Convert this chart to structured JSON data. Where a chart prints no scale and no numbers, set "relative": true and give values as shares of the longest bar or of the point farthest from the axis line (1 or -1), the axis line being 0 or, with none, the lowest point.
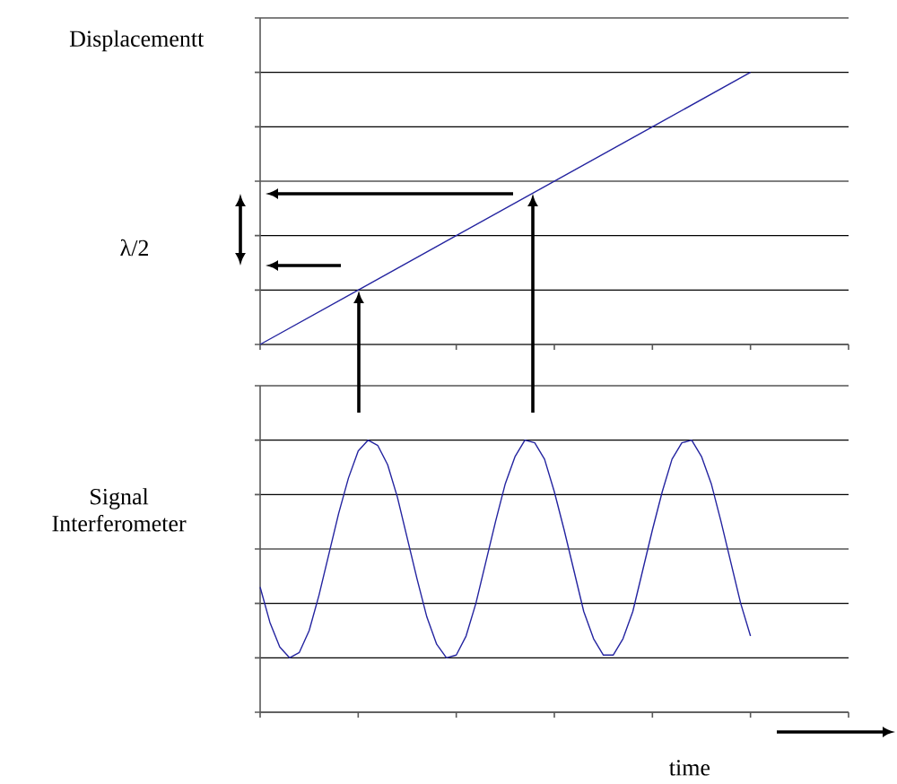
{
  "chart_data": [
    {
      "type": "line",
      "ylabel": "Displacementt",
      "annotations": [
        "λ/2"
      ],
      "relative": true,
      "categories": [
        null,
        null,
        null,
        null,
        null,
        null,
        null
      ],
      "values": [
        0,
        0.2,
        0.4,
        0.6,
        0.8,
        1,
        null
      ],
      "color": "#2424a0",
      "grid": "y",
      "marker": "none",
      "line_style": "solid"
    },
    {
      "type": "line",
      "ylabel": "Signal Interferometer",
      "xlabel": "time",
      "relative": true,
      "categories": [
        null,
        null,
        null,
        null,
        null,
        null,
        null,
        null,
        null,
        null,
        null,
        null,
        null,
        null,
        null,
        null,
        null,
        null,
        null,
        null,
        null,
        null,
        null,
        null,
        null,
        null,
        null,
        null,
        null,
        null,
        null,
        null,
        null,
        null,
        null,
        null,
        null,
        null,
        null,
        null,
        null,
        null,
        null,
        null,
        null,
        null,
        null,
        null,
        null,
        null,
        null,
        null,
        null,
        null,
        null,
        null,
        null,
        null,
        null,
        null,
        null
      ],
      "values": [
        0.46,
        0.33,
        0.24,
        0.2,
        0.22,
        0.3,
        0.43,
        0.58,
        0.73,
        0.86,
        0.96,
        1.0,
        0.98,
        0.91,
        0.79,
        0.64,
        0.49,
        0.35,
        0.25,
        0.2,
        0.21,
        0.28,
        0.4,
        0.55,
        0.7,
        0.84,
        0.94,
        1.0,
        0.99,
        0.93,
        0.81,
        0.67,
        0.52,
        0.37,
        0.27,
        0.21,
        0.21,
        0.27,
        0.37,
        0.52,
        0.67,
        0.81,
        0.93,
        0.99,
        1.0,
        0.94,
        0.84,
        0.7,
        0.55,
        0.4,
        0.28,
        null,
        null,
        null,
        null,
        null,
        null,
        null,
        null,
        null,
        null
      ],
      "color": "#2424a0",
      "grid": "y",
      "marker": "none",
      "line_style": "solid"
    }
  ]
}
